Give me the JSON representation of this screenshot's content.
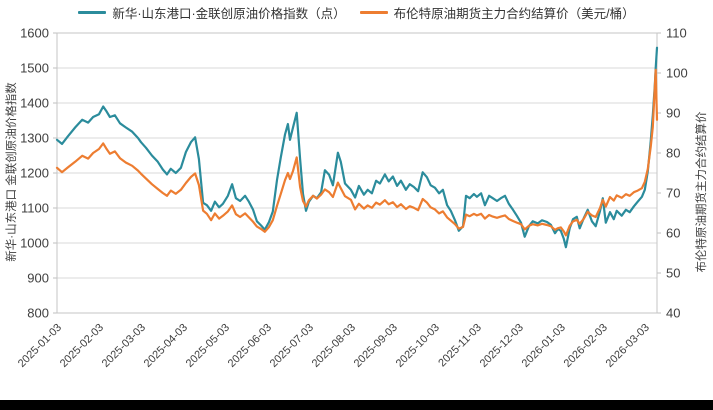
{
  "chart": {
    "legend": [
      {
        "label": "新华·山东港口·金联创原油价格指数（点）"
      },
      {
        "label": "布伦特原油期货主力合约结算价（美元/桶）"
      }
    ],
    "left_axis_title": "新华·山东港口 金联创原油价格指数",
    "right_axis_title": "布伦特原油期货主力合约结算价"
  },
  "chart_data": {
    "type": "line",
    "title": "",
    "grid": "horizontal",
    "legend_position": "top-center",
    "x_unit": "months since 2025-01-03 (ticks on the 3rd of each month)",
    "x_range": [
      0,
      14.29
    ],
    "x_axis": {
      "tick_labels": [
        "2025-01-03",
        "2025-02-03",
        "2025-03-03",
        "2025-04-03",
        "2025-05-03",
        "2025-06-03",
        "2025-07-03",
        "2025-08-03",
        "2025-09-03",
        "2025-10-03",
        "2025-11-03",
        "2025-12-03",
        "2026-01-03",
        "2026-02-03",
        "2026-03-03"
      ]
    },
    "left_axis": {
      "label": "新华·山东港口 金联创原油价格指数",
      "unit": "点",
      "ylim": [
        800,
        1600
      ],
      "ticks": [
        1600,
        1500,
        1400,
        1300,
        1200,
        1100,
        1000,
        900,
        800
      ]
    },
    "right_axis": {
      "label": "布伦特原油期货主力合约结算价",
      "unit": "美元/桶",
      "ylim": [
        40,
        110
      ],
      "ticks": [
        110,
        100,
        90,
        80,
        70,
        60,
        50,
        40
      ]
    },
    "gridline_color": "#d9d9d9",
    "axis_text_color": "#404040",
    "series": [
      {
        "id": "index",
        "name": "新华·山东港口·金联创原油价格指数（点）",
        "axis": "left",
        "color": "#2b8c9c",
        "points": [
          [
            0,
            1295
          ],
          [
            0.12,
            1283
          ],
          [
            0.26,
            1305
          ],
          [
            0.43,
            1330
          ],
          [
            0.6,
            1352
          ],
          [
            0.74,
            1344
          ],
          [
            0.86,
            1360
          ],
          [
            1.0,
            1368
          ],
          [
            1.1,
            1390
          ],
          [
            1.17,
            1378
          ],
          [
            1.26,
            1360
          ],
          [
            1.38,
            1365
          ],
          [
            1.5,
            1342
          ],
          [
            1.64,
            1330
          ],
          [
            1.79,
            1318
          ],
          [
            1.93,
            1300
          ],
          [
            2.0,
            1288
          ],
          [
            2.12,
            1272
          ],
          [
            2.26,
            1250
          ],
          [
            2.4,
            1232
          ],
          [
            2.52,
            1210
          ],
          [
            2.62,
            1196
          ],
          [
            2.71,
            1212
          ],
          [
            2.83,
            1200
          ],
          [
            2.95,
            1215
          ],
          [
            3.07,
            1260
          ],
          [
            3.19,
            1288
          ],
          [
            3.29,
            1302
          ],
          [
            3.38,
            1240
          ],
          [
            3.48,
            1115
          ],
          [
            3.57,
            1108
          ],
          [
            3.67,
            1092
          ],
          [
            3.76,
            1118
          ],
          [
            3.86,
            1102
          ],
          [
            3.95,
            1112
          ],
          [
            4.07,
            1135
          ],
          [
            4.17,
            1168
          ],
          [
            4.26,
            1128
          ],
          [
            4.36,
            1120
          ],
          [
            4.48,
            1135
          ],
          [
            4.57,
            1118
          ],
          [
            4.67,
            1095
          ],
          [
            4.76,
            1062
          ],
          [
            4.86,
            1050
          ],
          [
            4.95,
            1038
          ],
          [
            5.05,
            1060
          ],
          [
            5.14,
            1090
          ],
          [
            5.24,
            1180
          ],
          [
            5.33,
            1245
          ],
          [
            5.43,
            1310
          ],
          [
            5.5,
            1340
          ],
          [
            5.55,
            1295
          ],
          [
            5.62,
            1330
          ],
          [
            5.71,
            1372
          ],
          [
            5.79,
            1240
          ],
          [
            5.86,
            1140
          ],
          [
            5.93,
            1092
          ],
          [
            6.0,
            1118
          ],
          [
            6.1,
            1135
          ],
          [
            6.19,
            1128
          ],
          [
            6.29,
            1145
          ],
          [
            6.38,
            1208
          ],
          [
            6.48,
            1195
          ],
          [
            6.57,
            1165
          ],
          [
            6.69,
            1258
          ],
          [
            6.76,
            1232
          ],
          [
            6.86,
            1170
          ],
          [
            7.0,
            1152
          ],
          [
            7.1,
            1130
          ],
          [
            7.19,
            1163
          ],
          [
            7.31,
            1138
          ],
          [
            7.4,
            1152
          ],
          [
            7.5,
            1142
          ],
          [
            7.6,
            1178
          ],
          [
            7.69,
            1170
          ],
          [
            7.81,
            1196
          ],
          [
            7.9,
            1176
          ],
          [
            8.0,
            1190
          ],
          [
            8.1,
            1163
          ],
          [
            8.19,
            1178
          ],
          [
            8.31,
            1152
          ],
          [
            8.4,
            1168
          ],
          [
            8.5,
            1160
          ],
          [
            8.6,
            1148
          ],
          [
            8.71,
            1202
          ],
          [
            8.81,
            1188
          ],
          [
            8.9,
            1165
          ],
          [
            9.0,
            1158
          ],
          [
            9.1,
            1142
          ],
          [
            9.19,
            1152
          ],
          [
            9.29,
            1108
          ],
          [
            9.38,
            1092
          ],
          [
            9.48,
            1065
          ],
          [
            9.57,
            1035
          ],
          [
            9.67,
            1048
          ],
          [
            9.74,
            1135
          ],
          [
            9.83,
            1128
          ],
          [
            9.93,
            1140
          ],
          [
            10.0,
            1132
          ],
          [
            10.1,
            1142
          ],
          [
            10.19,
            1108
          ],
          [
            10.29,
            1135
          ],
          [
            10.38,
            1128
          ],
          [
            10.48,
            1120
          ],
          [
            10.57,
            1128
          ],
          [
            10.67,
            1135
          ],
          [
            10.76,
            1112
          ],
          [
            10.86,
            1095
          ],
          [
            10.95,
            1078
          ],
          [
            11.05,
            1058
          ],
          [
            11.14,
            1018
          ],
          [
            11.24,
            1048
          ],
          [
            11.33,
            1062
          ],
          [
            11.45,
            1056
          ],
          [
            11.55,
            1065
          ],
          [
            11.67,
            1060
          ],
          [
            11.76,
            1052
          ],
          [
            11.86,
            1028
          ],
          [
            11.93,
            1040
          ],
          [
            12.0,
            1035
          ],
          [
            12.07,
            1012
          ],
          [
            12.12,
            988
          ],
          [
            12.21,
            1042
          ],
          [
            12.29,
            1068
          ],
          [
            12.38,
            1075
          ],
          [
            12.45,
            1042
          ],
          [
            12.55,
            1072
          ],
          [
            12.64,
            1095
          ],
          [
            12.74,
            1062
          ],
          [
            12.83,
            1048
          ],
          [
            12.93,
            1090
          ],
          [
            13.0,
            1128
          ],
          [
            13.07,
            1058
          ],
          [
            13.17,
            1088
          ],
          [
            13.26,
            1068
          ],
          [
            13.33,
            1092
          ],
          [
            13.45,
            1078
          ],
          [
            13.55,
            1095
          ],
          [
            13.64,
            1088
          ],
          [
            13.74,
            1105
          ],
          [
            13.83,
            1118
          ],
          [
            13.93,
            1132
          ],
          [
            14.0,
            1152
          ],
          [
            14.07,
            1205
          ],
          [
            14.14,
            1290
          ],
          [
            14.19,
            1365
          ],
          [
            14.24,
            1455
          ],
          [
            14.26,
            1500
          ],
          [
            14.29,
            1558
          ]
        ]
      },
      {
        "id": "brent",
        "name": "布伦特原油期货主力合约结算价（美元/桶）",
        "axis": "right",
        "color": "#ed7d31",
        "points": [
          [
            0,
            76.3
          ],
          [
            0.12,
            75.2
          ],
          [
            0.26,
            76.4
          ],
          [
            0.43,
            77.8
          ],
          [
            0.6,
            79.3
          ],
          [
            0.74,
            78.6
          ],
          [
            0.86,
            80.0
          ],
          [
            1.0,
            81.0
          ],
          [
            1.1,
            82.4
          ],
          [
            1.17,
            81.2
          ],
          [
            1.26,
            79.8
          ],
          [
            1.38,
            80.4
          ],
          [
            1.5,
            78.7
          ],
          [
            1.64,
            77.6
          ],
          [
            1.79,
            76.8
          ],
          [
            1.93,
            75.6
          ],
          [
            2.0,
            74.8
          ],
          [
            2.12,
            73.6
          ],
          [
            2.26,
            72.2
          ],
          [
            2.4,
            71.0
          ],
          [
            2.52,
            70.0
          ],
          [
            2.62,
            69.3
          ],
          [
            2.71,
            70.6
          ],
          [
            2.83,
            69.8
          ],
          [
            2.95,
            70.8
          ],
          [
            3.07,
            72.5
          ],
          [
            3.19,
            74.0
          ],
          [
            3.29,
            74.9
          ],
          [
            3.38,
            72.0
          ],
          [
            3.48,
            65.6
          ],
          [
            3.57,
            64.8
          ],
          [
            3.67,
            63.2
          ],
          [
            3.76,
            64.9
          ],
          [
            3.86,
            63.6
          ],
          [
            3.95,
            64.3
          ],
          [
            4.07,
            65.4
          ],
          [
            4.17,
            66.9
          ],
          [
            4.26,
            64.7
          ],
          [
            4.36,
            64.0
          ],
          [
            4.48,
            64.9
          ],
          [
            4.57,
            63.9
          ],
          [
            4.67,
            62.8
          ],
          [
            4.76,
            61.6
          ],
          [
            4.86,
            61.0
          ],
          [
            4.95,
            60.3
          ],
          [
            5.05,
            61.5
          ],
          [
            5.14,
            63.2
          ],
          [
            5.24,
            66.8
          ],
          [
            5.33,
            69.8
          ],
          [
            5.43,
            73.2
          ],
          [
            5.5,
            75.0
          ],
          [
            5.55,
            73.5
          ],
          [
            5.62,
            75.5
          ],
          [
            5.71,
            78.9
          ],
          [
            5.79,
            71.5
          ],
          [
            5.86,
            68.0
          ],
          [
            5.93,
            66.6
          ],
          [
            6.0,
            68.2
          ],
          [
            6.1,
            69.3
          ],
          [
            6.19,
            68.6
          ],
          [
            6.29,
            69.6
          ],
          [
            6.38,
            70.9
          ],
          [
            6.48,
            70.2
          ],
          [
            6.57,
            69.0
          ],
          [
            6.69,
            72.6
          ],
          [
            6.76,
            71.2
          ],
          [
            6.86,
            69.2
          ],
          [
            7.0,
            68.3
          ],
          [
            7.1,
            65.9
          ],
          [
            7.19,
            67.3
          ],
          [
            7.31,
            66.1
          ],
          [
            7.4,
            66.9
          ],
          [
            7.5,
            66.3
          ],
          [
            7.6,
            67.6
          ],
          [
            7.69,
            67.1
          ],
          [
            7.81,
            68.2
          ],
          [
            7.9,
            67.2
          ],
          [
            8.0,
            67.7
          ],
          [
            8.1,
            66.5
          ],
          [
            8.19,
            67.2
          ],
          [
            8.31,
            66.0
          ],
          [
            8.4,
            66.7
          ],
          [
            8.5,
            66.3
          ],
          [
            8.6,
            65.7
          ],
          [
            8.71,
            68.5
          ],
          [
            8.81,
            67.6
          ],
          [
            8.9,
            66.4
          ],
          [
            9.0,
            65.9
          ],
          [
            9.1,
            64.9
          ],
          [
            9.19,
            65.4
          ],
          [
            9.29,
            63.9
          ],
          [
            9.38,
            63.1
          ],
          [
            9.48,
            62.2
          ],
          [
            9.57,
            61.1
          ],
          [
            9.67,
            61.5
          ],
          [
            9.74,
            64.6
          ],
          [
            9.83,
            64.2
          ],
          [
            9.93,
            64.8
          ],
          [
            10.0,
            64.4
          ],
          [
            10.1,
            64.8
          ],
          [
            10.19,
            63.6
          ],
          [
            10.29,
            64.5
          ],
          [
            10.38,
            64.1
          ],
          [
            10.48,
            63.8
          ],
          [
            10.57,
            64.1
          ],
          [
            10.67,
            64.4
          ],
          [
            10.76,
            63.5
          ],
          [
            10.86,
            63.0
          ],
          [
            10.95,
            62.6
          ],
          [
            11.05,
            62.2
          ],
          [
            11.14,
            60.9
          ],
          [
            11.24,
            61.8
          ],
          [
            11.33,
            62.2
          ],
          [
            11.45,
            61.9
          ],
          [
            11.55,
            62.3
          ],
          [
            11.67,
            62.0
          ],
          [
            11.76,
            61.7
          ],
          [
            11.86,
            60.8
          ],
          [
            11.93,
            61.2
          ],
          [
            12.0,
            61.4
          ],
          [
            12.07,
            60.4
          ],
          [
            12.12,
            59.4
          ],
          [
            12.21,
            61.8
          ],
          [
            12.29,
            62.9
          ],
          [
            12.38,
            63.3
          ],
          [
            12.45,
            62.3
          ],
          [
            12.55,
            63.6
          ],
          [
            12.64,
            65.3
          ],
          [
            12.74,
            64.4
          ],
          [
            12.83,
            64.0
          ],
          [
            12.93,
            66.2
          ],
          [
            13.0,
            68.3
          ],
          [
            13.07,
            66.6
          ],
          [
            13.17,
            69.0
          ],
          [
            13.26,
            68.1
          ],
          [
            13.33,
            69.4
          ],
          [
            13.45,
            68.8
          ],
          [
            13.55,
            69.7
          ],
          [
            13.64,
            69.3
          ],
          [
            13.74,
            70.2
          ],
          [
            13.83,
            70.6
          ],
          [
            13.93,
            71.2
          ],
          [
            14.0,
            72.8
          ],
          [
            14.07,
            76.0
          ],
          [
            14.14,
            81.5
          ],
          [
            14.19,
            86.5
          ],
          [
            14.22,
            93.0
          ],
          [
            14.26,
            100.8
          ],
          [
            14.29,
            88.3
          ]
        ]
      }
    ]
  }
}
